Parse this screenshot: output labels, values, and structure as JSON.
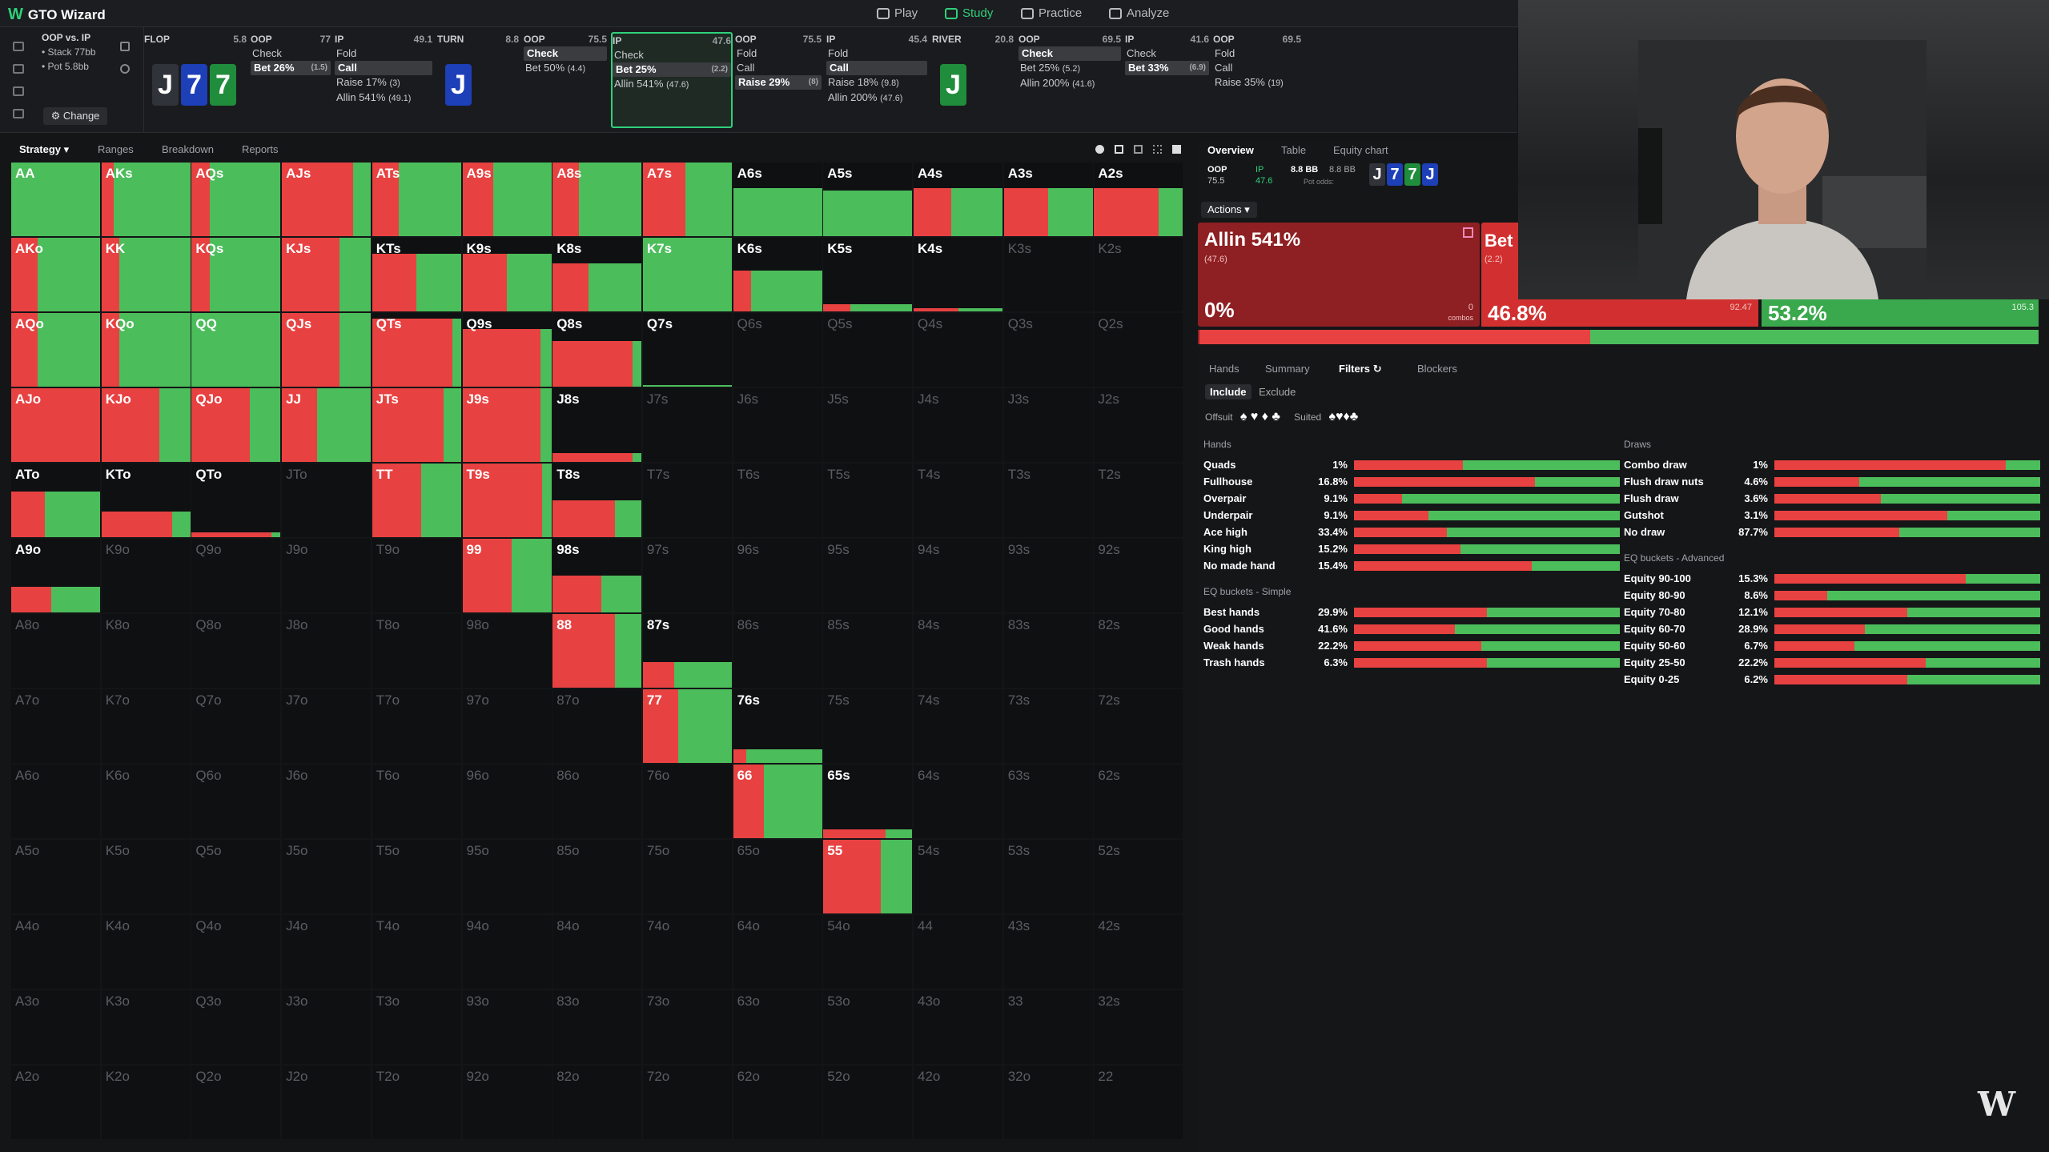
{
  "app": {
    "title": "GTO Wizard"
  },
  "nav": [
    {
      "label": "Play"
    },
    {
      "label": "Study"
    },
    {
      "label": "Practice"
    },
    {
      "label": "Analyze"
    }
  ],
  "spot": {
    "matchup": "OOP vs. IP",
    "stack": "• Stack 77bb",
    "pot": "• Pot 5.8bb",
    "change": "Change"
  },
  "steps": [
    {
      "pos": "FLOP",
      "val": "5.8",
      "cards": [
        {
          "r": "J",
          "c": "c-blk"
        },
        {
          "r": "7",
          "c": "c-blu"
        },
        {
          "r": "7",
          "c": "c-grn"
        }
      ]
    },
    {
      "pos": "OOP",
      "val": "77",
      "actions": [
        {
          "t": "Check"
        },
        {
          "t": "Bet 26%",
          "n": "(1.5)",
          "sel": true
        }
      ]
    },
    {
      "pos": "IP",
      "val": "49.1",
      "actions": [
        {
          "t": "Fold"
        },
        {
          "t": "Call",
          "sel": true
        },
        {
          "t": "Raise 17%",
          "n": "(3)"
        },
        {
          "t": "Allin 541%",
          "n": "(49.1)"
        }
      ]
    },
    {
      "pos": "TURN",
      "val": "8.8",
      "cards": [
        {
          "r": "J",
          "c": "c-blu"
        }
      ]
    },
    {
      "pos": "OOP",
      "val": "75.5",
      "actions": [
        {
          "t": "Check",
          "sel": true
        },
        {
          "t": "Bet 50%",
          "n": "(4.4)"
        }
      ]
    },
    {
      "pos": "IP",
      "val": "47.6",
      "current": true,
      "actions": [
        {
          "t": "Check"
        },
        {
          "t": "Bet 25%",
          "n": "(2.2)",
          "sel": true
        },
        {
          "t": "Allin 541%",
          "n": "(47.6)"
        }
      ]
    },
    {
      "pos": "OOP",
      "val": "75.5",
      "actions": [
        {
          "t": "Fold"
        },
        {
          "t": "Call"
        },
        {
          "t": "Raise 29%",
          "n": "(8)",
          "sel": true
        }
      ]
    },
    {
      "pos": "IP",
      "val": "45.4",
      "actions": [
        {
          "t": "Fold"
        },
        {
          "t": "Call",
          "sel": true
        },
        {
          "t": "Raise 18%",
          "n": "(9.8)"
        },
        {
          "t": "Allin 200%",
          "n": "(47.6)"
        }
      ]
    },
    {
      "pos": "RIVER",
      "val": "20.8",
      "cards": [
        {
          "r": "J",
          "c": "c-grn"
        }
      ]
    },
    {
      "pos": "OOP",
      "val": "69.5",
      "actions": [
        {
          "t": "Check",
          "sel": true
        },
        {
          "t": "Bet 25%",
          "n": "(5.2)"
        },
        {
          "t": "Allin 200%",
          "n": "(41.6)"
        }
      ]
    },
    {
      "pos": "IP",
      "val": "41.6",
      "actions": [
        {
          "t": "Check"
        },
        {
          "t": "Bet 33%",
          "n": "(6.9)",
          "sel": true
        }
      ]
    },
    {
      "pos": "OOP",
      "val": "69.5",
      "actions": [
        {
          "t": "Fold"
        },
        {
          "t": "Call"
        },
        {
          "t": "Raise 35%",
          "n": "(19)"
        }
      ]
    }
  ],
  "left_tabs": [
    "Strategy",
    "Ranges",
    "Breakdown",
    "Reports"
  ],
  "grid": [
    [
      "AA",
      "AKs",
      "AQs",
      "AJs",
      "ATs",
      "A9s",
      "A8s",
      "A7s",
      "A6s",
      "A5s",
      "A4s",
      "A3s",
      "A2s"
    ],
    [
      "AKo",
      "KK",
      "KQs",
      "KJs",
      "KTs",
      "K9s",
      "K8s",
      "K7s",
      "K6s",
      "K5s",
      "K4s",
      "K3s",
      "K2s"
    ],
    [
      "AQo",
      "KQo",
      "QQ",
      "QJs",
      "QTs",
      "Q9s",
      "Q8s",
      "Q7s",
      "Q6s",
      "Q5s",
      "Q4s",
      "Q3s",
      "Q2s"
    ],
    [
      "AJo",
      "KJo",
      "QJo",
      "JJ",
      "JTs",
      "J9s",
      "J8s",
      "J7s",
      "J6s",
      "J5s",
      "J4s",
      "J3s",
      "J2s"
    ],
    [
      "ATo",
      "KTo",
      "QTo",
      "JTo",
      "TT",
      "T9s",
      "T8s",
      "T7s",
      "T6s",
      "T5s",
      "T4s",
      "T3s",
      "T2s"
    ],
    [
      "A9o",
      "K9o",
      "Q9o",
      "J9o",
      "T9o",
      "99",
      "98s",
      "97s",
      "96s",
      "95s",
      "94s",
      "93s",
      "92s"
    ],
    [
      "A8o",
      "K8o",
      "Q8o",
      "J8o",
      "T8o",
      "98o",
      "88",
      "87s",
      "86s",
      "85s",
      "84s",
      "83s",
      "82s"
    ],
    [
      "A7o",
      "K7o",
      "Q7o",
      "J7o",
      "T7o",
      "97o",
      "87o",
      "77",
      "76s",
      "75s",
      "74s",
      "73s",
      "72s"
    ],
    [
      "A6o",
      "K6o",
      "Q6o",
      "J6o",
      "T6o",
      "96o",
      "86o",
      "76o",
      "66",
      "65s",
      "64s",
      "63s",
      "62s"
    ],
    [
      "A5o",
      "K5o",
      "Q5o",
      "J5o",
      "T5o",
      "95o",
      "85o",
      "75o",
      "65o",
      "55",
      "54s",
      "53s",
      "52s"
    ],
    [
      "A4o",
      "K4o",
      "Q4o",
      "J4o",
      "T4o",
      "94o",
      "84o",
      "74o",
      "64o",
      "54o",
      "44",
      "43s",
      "42s"
    ],
    [
      "A3o",
      "K3o",
      "Q3o",
      "J3o",
      "T3o",
      "93o",
      "83o",
      "73o",
      "63o",
      "53o",
      "43o",
      "33",
      "32s"
    ],
    [
      "A2o",
      "K2o",
      "Q2o",
      "J2o",
      "T2o",
      "92o",
      "82o",
      "72o",
      "62o",
      "52o",
      "42o",
      "32o",
      "22"
    ]
  ],
  "right_tabs": [
    "Overview",
    "Table",
    "Equity chart"
  ],
  "summary": {
    "oop": "OOP",
    "oop_val": "75.5",
    "ip": "IP",
    "ip_val": "47.6",
    "pot": "8.8 BB",
    "pot2": "8.8 BB",
    "pot_label": "Pot odds:",
    "board": [
      "J",
      "7",
      "7",
      "J"
    ]
  },
  "actions_btn": "Actions",
  "strategy": {
    "allin_label": "Allin 541%",
    "allin_size": "(47.6)",
    "allin_pct": "0%",
    "allin_combos": "0",
    "combos_label": "combos",
    "bet_label": "Bet",
    "bet_size": "(2.2)",
    "bet_pct": "46.8%",
    "bet_combos": "92.47",
    "check_pct": "53.2%",
    "check_combos": "105.3"
  },
  "sub_tabs": [
    "Hands",
    "Summary",
    "Filters",
    "Blockers"
  ],
  "include": [
    "Include",
    "Exclude"
  ],
  "suits": {
    "offsuit": "Offsuit",
    "suited": "Suited"
  },
  "hands": {
    "title": "Hands",
    "rows": [
      [
        "Quads",
        "1%",
        0.41
      ],
      [
        "Fullhouse",
        "16.8%",
        0.68
      ],
      [
        "Overpair",
        "9.1%",
        0.18
      ],
      [
        "Underpair",
        "9.1%",
        0.28
      ],
      [
        "Ace high",
        "33.4%",
        0.35
      ],
      [
        "King high",
        "15.2%",
        0.4
      ],
      [
        "No made hand",
        "15.4%",
        0.67
      ]
    ]
  },
  "eq_simple": {
    "title": "EQ buckets - Simple",
    "rows": [
      [
        "Best hands",
        "29.9%",
        0.5
      ],
      [
        "Good hands",
        "41.6%",
        0.38
      ],
      [
        "Weak hands",
        "22.2%",
        0.48
      ],
      [
        "Trash hands",
        "6.3%",
        0.5
      ]
    ]
  },
  "draws": {
    "title": "Draws",
    "rows": [
      [
        "Combo draw",
        "1%",
        0.87
      ],
      [
        "Flush draw nuts",
        "4.6%",
        0.32
      ],
      [
        "Flush draw",
        "3.6%",
        0.4
      ],
      [
        "Gutshot",
        "3.1%",
        0.65
      ],
      [
        "No draw",
        "87.7%",
        0.47
      ]
    ]
  },
  "eq_adv": {
    "title": "EQ buckets - Advanced",
    "rows": [
      [
        "Equity 90-100",
        "15.3%",
        0.72
      ],
      [
        "Equity 80-90",
        "8.6%",
        0.2
      ],
      [
        "Equity 70-80",
        "12.1%",
        0.5
      ],
      [
        "Equity 60-70",
        "28.9%",
        0.34
      ],
      [
        "Equity 50-60",
        "6.7%",
        0.3
      ],
      [
        "Equity 25-50",
        "22.2%",
        0.57
      ],
      [
        "Equity 0-25",
        "6.2%",
        0.5
      ]
    ]
  },
  "watermark": "W"
}
